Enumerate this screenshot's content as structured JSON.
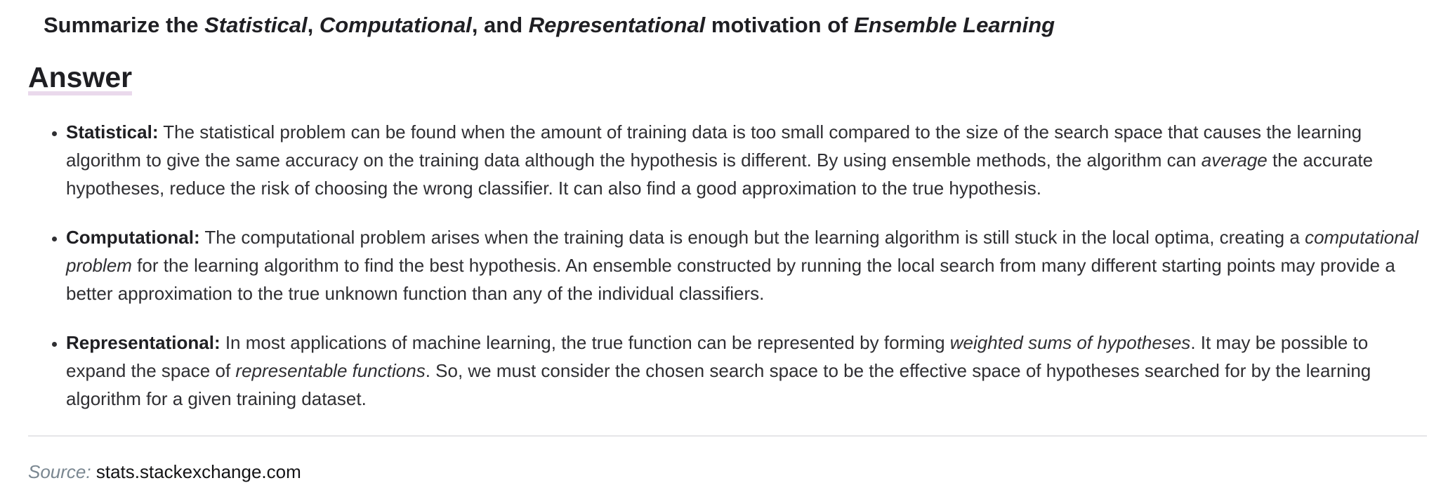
{
  "question": {
    "p1": "Summarize the ",
    "e1": "Statistical",
    "p2": ", ",
    "e2": "Computational",
    "p3": ", and ",
    "e3": "Representational",
    "p4": " motivation of ",
    "e4": "Ensemble Learning"
  },
  "answer_heading": "Answer",
  "points": [
    {
      "term": "Statistical:",
      "t1": " The statistical problem can be found when the amount of training data is too small compared to the size of the search space that causes the learning algorithm to give the same accuracy on the training data although the hypothesis is different. By using ensemble methods, the algorithm can ",
      "em1": "average",
      "t2": " the accurate hypotheses, reduce the risk of choosing the wrong classifier. It can also find a good approximation to the true hypothesis."
    },
    {
      "term": "Computational:",
      "t1": " The computational problem arises when the training data is enough but the learning algorithm is still stuck in the local optima, creating a ",
      "em1": "computational problem",
      "t2": " for the learning algorithm to find the best hypothesis. An ensemble constructed by running the local search from many different starting points may provide a better approximation to the true unknown function than any of the individual classifiers."
    },
    {
      "term": "Representational:",
      "t1": " In most applications of machine learning, the true function can be represented by forming ",
      "em1": "weighted sums of hypotheses",
      "t2": ". It may be possible to expand the space of ",
      "em2": "representable functions",
      "t3": ". So, we must consider the chosen search space to be the effective space of hypotheses searched for by the learning algorithm for a given training dataset."
    }
  ],
  "source": {
    "label": "Source:",
    "domain": "stats.stackexchange.com"
  }
}
